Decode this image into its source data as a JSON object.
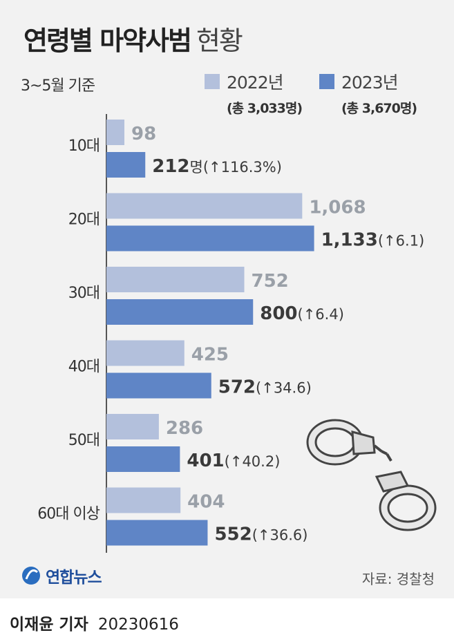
{
  "title_bold": "연령별 마약사범",
  "title_light": "현황",
  "subtitle": "3~5월 기준",
  "legend": [
    {
      "label": "2022년",
      "total": "(총 3,033명)",
      "color": "#b3c0dc"
    },
    {
      "label": "2023년",
      "total": "(총 3,670명)",
      "color": "#5f85c6"
    }
  ],
  "chart_data": {
    "type": "bar",
    "orientation": "horizontal",
    "categories": [
      "10대",
      "20대",
      "30대",
      "40대",
      "50대",
      "60대 이상"
    ],
    "series": [
      {
        "name": "2022년",
        "values": [
          98,
          1068,
          752,
          425,
          286,
          404
        ],
        "color": "#b3c0dc"
      },
      {
        "name": "2023년",
        "values": [
          212,
          1133,
          800,
          572,
          401,
          552
        ],
        "color": "#5f85c6"
      }
    ],
    "labels_2022": [
      "98",
      "1,068",
      "752",
      "425",
      "286",
      "404"
    ],
    "labels_2023": [
      "212",
      "1,133",
      "800",
      "572",
      "401",
      "552"
    ],
    "unit_first": "명",
    "change_notes": [
      "(↑116.3%)",
      "(↑6.1)",
      "(↑6.4)",
      "(↑34.6)",
      "(↑40.2)",
      "(↑36.6)"
    ]
  },
  "source": "자료: 경찰청",
  "logo_text": "연합뉴스",
  "byline_name": "이재윤 기자",
  "byline_date": "20230616",
  "icons": {
    "logo": "yonhap-logo-icon",
    "illustration": "handcuffs-icon"
  }
}
